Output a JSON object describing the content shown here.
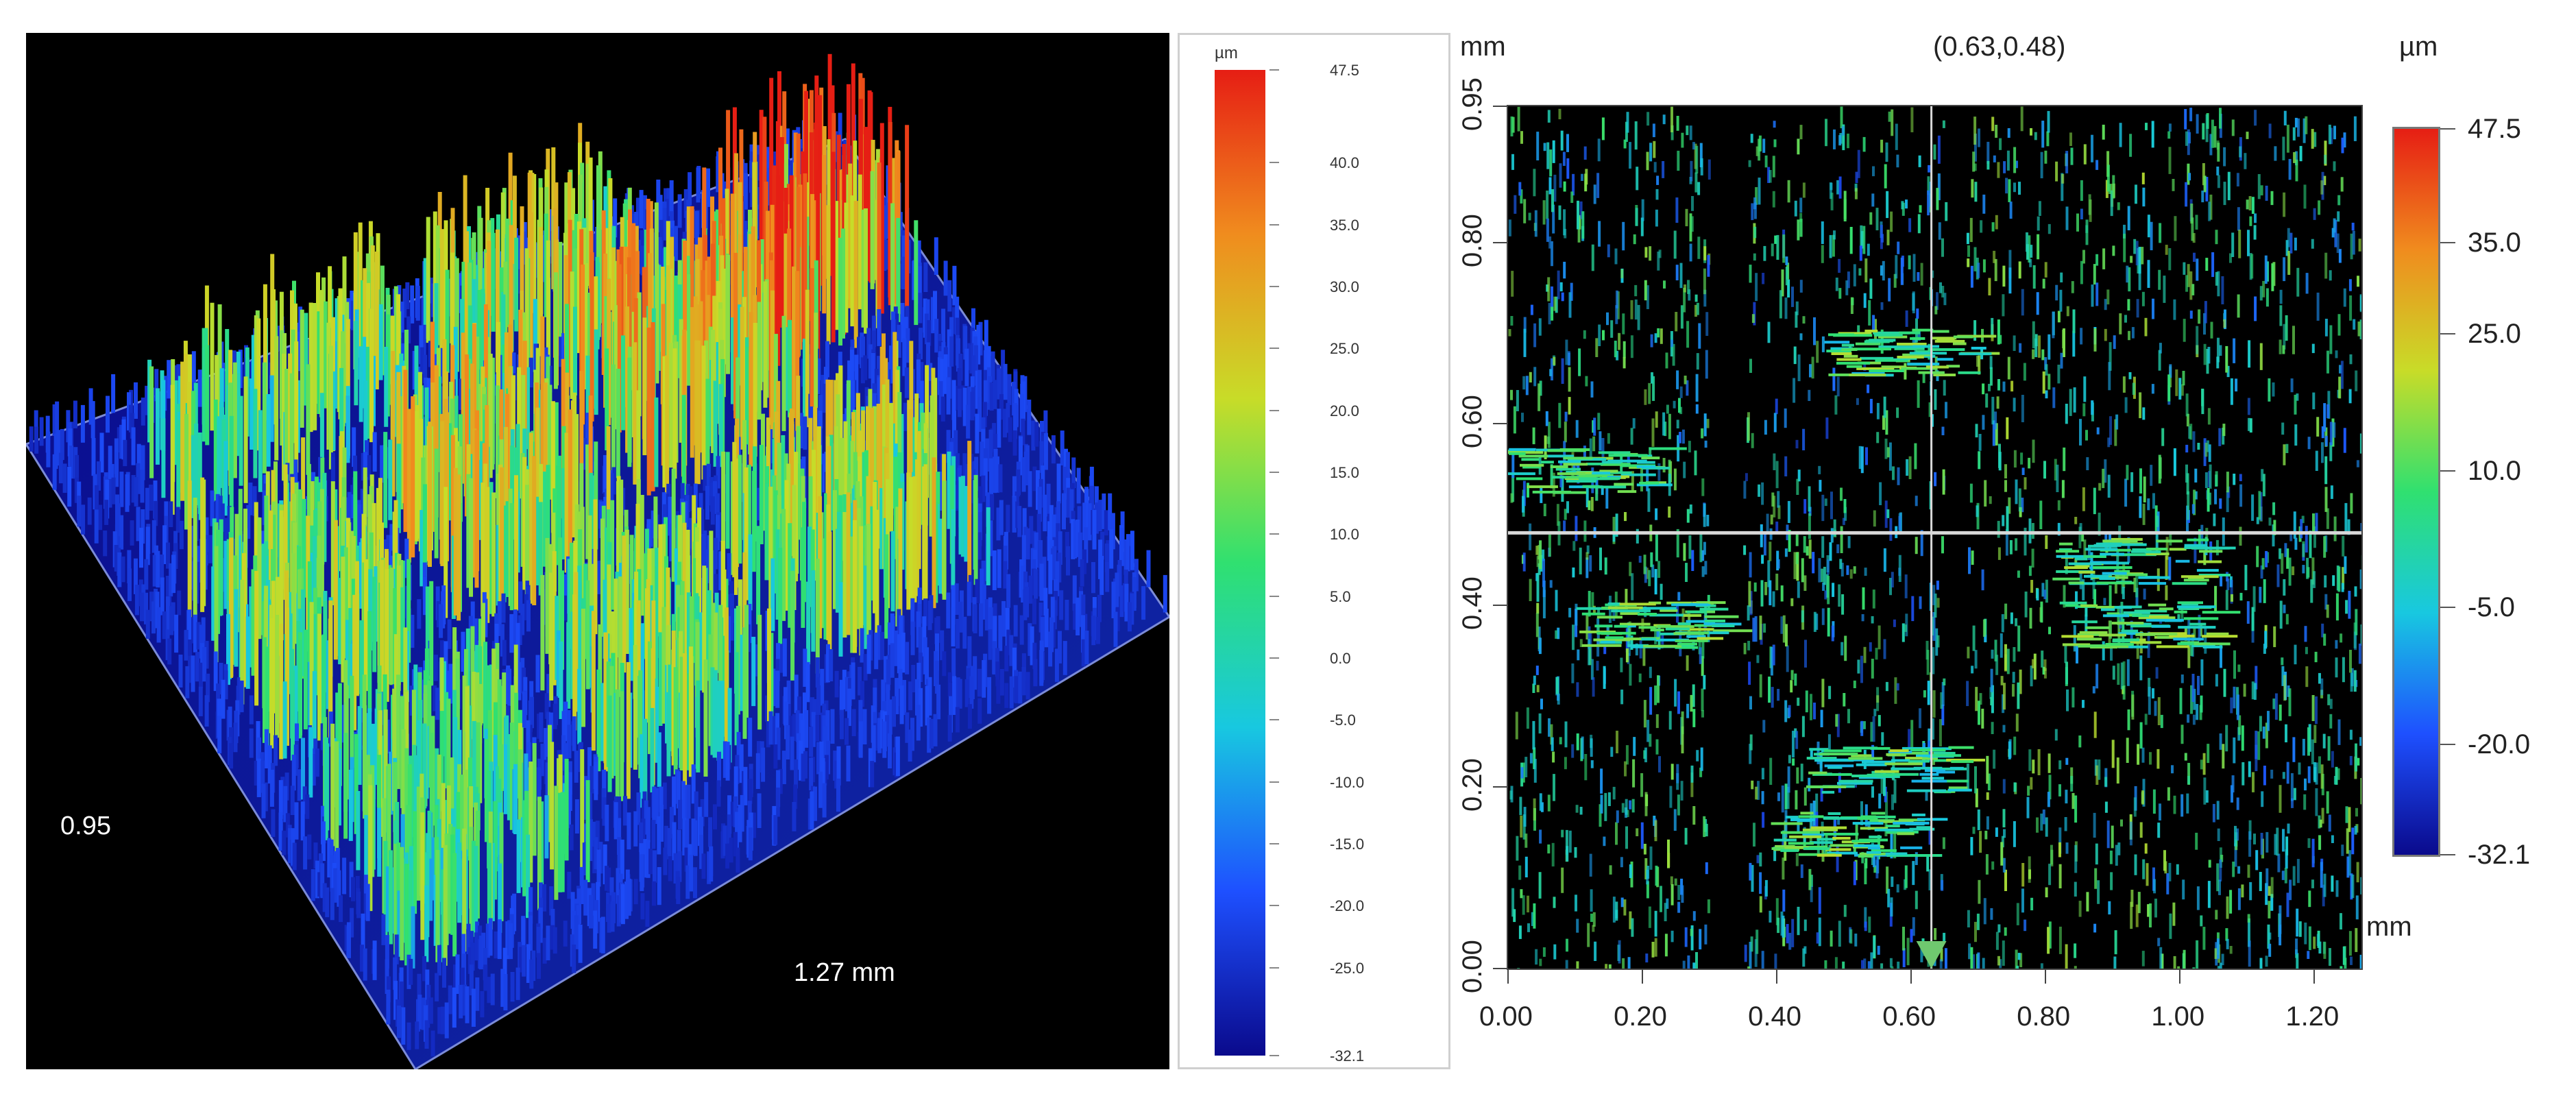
{
  "chart_data": [
    {
      "type": "heatmap",
      "title": "",
      "view": "3d-surface",
      "colormap": [
        "#0a0a8c",
        "#1e50ff",
        "#18c8e0",
        "#30e070",
        "#c8dc28",
        "#f08c1e",
        "#e61e14"
      ],
      "axis_labels": {
        "y_extent": "0.95",
        "x_extent": "1.27 mm"
      },
      "colorbar": {
        "unit": "µm",
        "range": [
          -32.1,
          47.5
        ],
        "ticks": [
          "47.5",
          "40.0",
          "35.0",
          "30.0",
          "25.0",
          "20.0",
          "15.0",
          "10.0",
          "5.0",
          "0.0",
          "-5.0",
          "-10.0",
          "-15.0",
          "-20.0",
          "-25.0",
          "-32.1"
        ]
      }
    },
    {
      "type": "heatmap",
      "title": "",
      "view": "2d-topview",
      "cursor_label": "(0.63,0.48)",
      "x_unit": "mm",
      "y_unit": "mm",
      "x_ticks": [
        "0.00",
        "0.20",
        "0.40",
        "0.60",
        "0.80",
        "1.00",
        "1.20"
      ],
      "y_ticks": [
        "0.00",
        "0.20",
        "0.40",
        "0.60",
        "0.80",
        "0.95"
      ],
      "xlim": [
        0,
        1.27
      ],
      "ylim": [
        0,
        0.95
      ],
      "cursor": {
        "x": 0.63,
        "y": 0.48
      },
      "colorbar": {
        "unit": "µm",
        "range": [
          -32.1,
          47.5
        ],
        "ticks": [
          "47.5",
          "35.0",
          "25.0",
          "10.0",
          "-5.0",
          "-20.0",
          "-32.1"
        ]
      }
    }
  ]
}
